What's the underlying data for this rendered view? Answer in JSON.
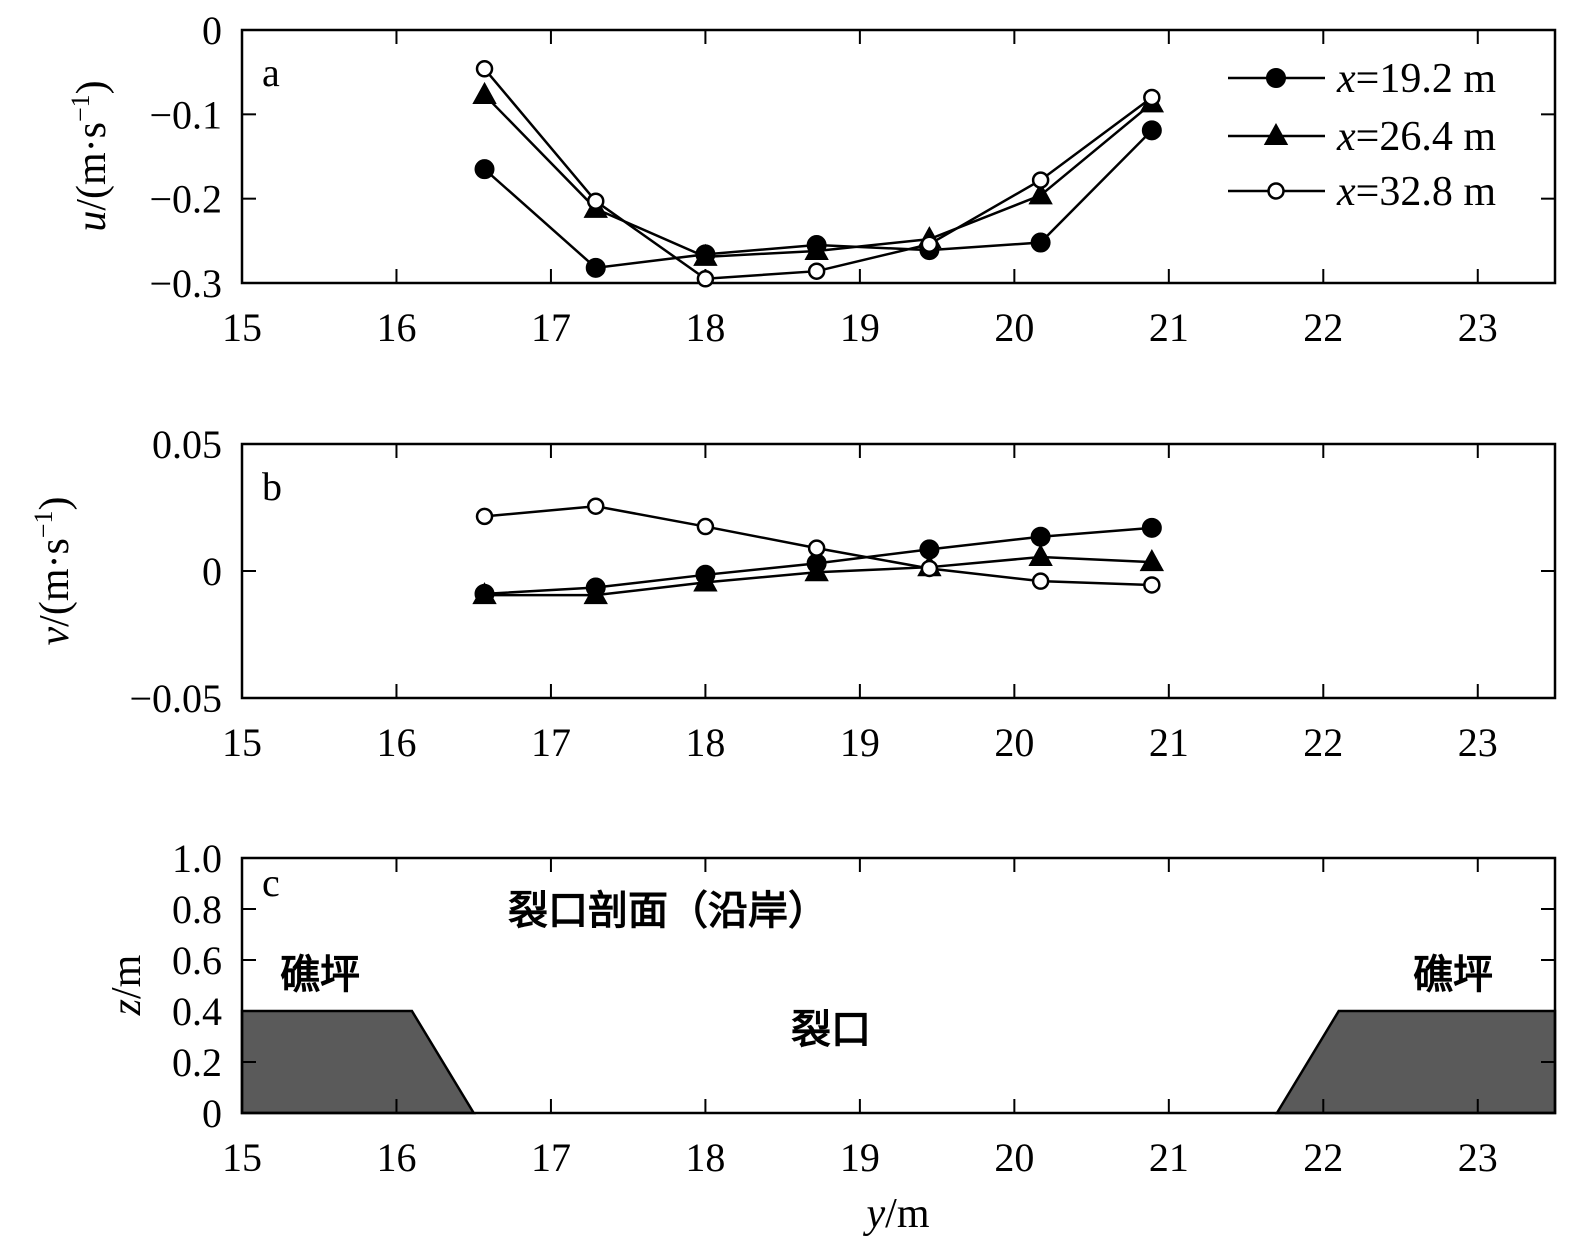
{
  "chart_data": [
    {
      "type": "line",
      "panel": "a",
      "ylabel_var": "u",
      "ylabel_unit_open": "/(m·s",
      "ylabel_unit_exp": "−1",
      "ylabel_unit_close": ")",
      "xlim": [
        15,
        23.5
      ],
      "ylim": [
        -0.3,
        0
      ],
      "x_ticks": [
        "15",
        "16",
        "17",
        "18",
        "19",
        "20",
        "21",
        "22",
        "23"
      ],
      "y_ticks": [
        "0",
        "−0.1",
        "−0.2",
        "−0.3"
      ],
      "y_tick_values": [
        0,
        -0.1,
        -0.2,
        -0.3
      ],
      "legend_position": "top-right",
      "x": [
        16.57,
        17.29,
        18.0,
        18.72,
        19.45,
        20.17,
        20.89
      ],
      "series": [
        {
          "name_var": "x",
          "name_rest": "=19.2 m",
          "marker": "filled-circle",
          "values": [
            -0.165,
            -0.282,
            -0.266,
            -0.255,
            -0.261,
            -0.252,
            -0.119
          ]
        },
        {
          "name_var": "x",
          "name_rest": "=26.4 m",
          "marker": "filled-triangle",
          "values": [
            -0.077,
            -0.212,
            -0.269,
            -0.262,
            -0.248,
            -0.196,
            -0.087
          ]
        },
        {
          "name_var": "x",
          "name_rest": "=32.8 m",
          "marker": "open-circle",
          "values": [
            -0.046,
            -0.203,
            -0.295,
            -0.286,
            -0.254,
            -0.178,
            -0.08
          ]
        }
      ]
    },
    {
      "type": "line",
      "panel": "b",
      "ylabel_var": "v",
      "ylabel_unit_open": "/(m·s",
      "ylabel_unit_exp": "−1",
      "ylabel_unit_close": ")",
      "xlim": [
        15,
        23.5
      ],
      "ylim": [
        -0.05,
        0.05
      ],
      "x_ticks": [
        "15",
        "16",
        "17",
        "18",
        "19",
        "20",
        "21",
        "22",
        "23"
      ],
      "y_ticks": [
        "0.05",
        "0",
        "−0.05"
      ],
      "y_tick_values": [
        0.05,
        0,
        -0.05
      ],
      "x": [
        16.57,
        17.29,
        18.0,
        18.72,
        19.45,
        20.17,
        20.89
      ],
      "series": [
        {
          "marker": "filled-circle",
          "values": [
            -0.009,
            -0.0065,
            -0.0015,
            0.003,
            0.0085,
            0.0135,
            0.017
          ]
        },
        {
          "marker": "filled-triangle",
          "values": [
            -0.0095,
            -0.0095,
            -0.0045,
            -0.0005,
            0.0015,
            0.0055,
            0.0035
          ]
        },
        {
          "marker": "open-circle",
          "values": [
            0.0215,
            0.0255,
            0.0175,
            0.009,
            0.001,
            -0.004,
            -0.0055
          ]
        }
      ]
    },
    {
      "type": "area",
      "panel": "c",
      "xlabel_var": "y",
      "xlabel_unit": "/m",
      "ylabel_var": "z",
      "ylabel_unit": "/m",
      "xlim": [
        15,
        23.5
      ],
      "ylim": [
        0,
        1.0
      ],
      "x_ticks": [
        "15",
        "16",
        "17",
        "18",
        "19",
        "20",
        "21",
        "22",
        "23"
      ],
      "y_ticks": [
        "1.0",
        "0.8",
        "0.6",
        "0.4",
        "0.2",
        "0"
      ],
      "y_tick_values": [
        1.0,
        0.8,
        0.6,
        0.4,
        0.2,
        0
      ],
      "profile_color": "#5a5a5a",
      "reef_left": [
        [
          15,
          0
        ],
        [
          15,
          0.4
        ],
        [
          16.1,
          0.4
        ],
        [
          16.5,
          0
        ]
      ],
      "reef_right": [
        [
          21.7,
          0
        ],
        [
          22.1,
          0.4
        ],
        [
          23.5,
          0.4
        ],
        [
          23.5,
          0
        ]
      ],
      "annotations": {
        "title": "裂口剖面（沿岸）",
        "reef_left": "礁坪",
        "reef_right": "礁坪",
        "channel": "裂口"
      }
    }
  ]
}
